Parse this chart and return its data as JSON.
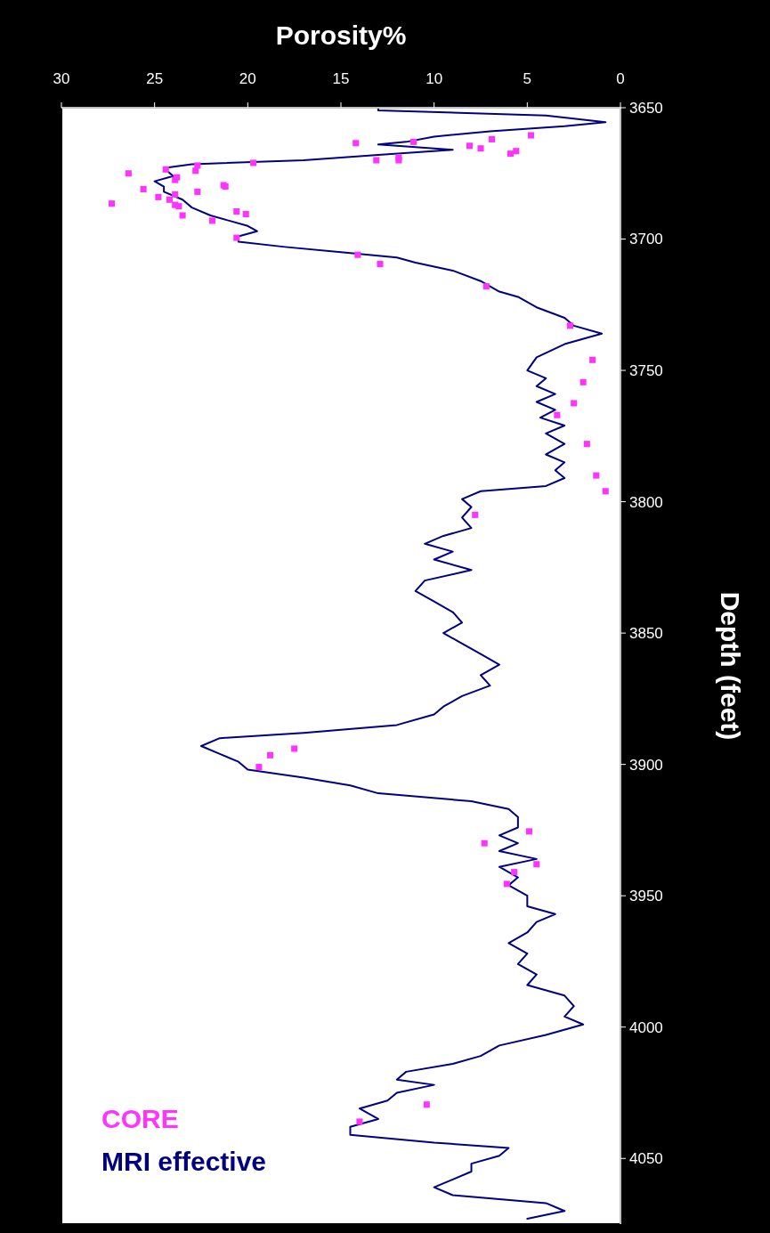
{
  "chart_data": {
    "type": "scatter",
    "xlabel": "Porosity%",
    "ylabel": "Depth (feet)",
    "xlim": [
      30,
      0
    ],
    "ylim": [
      4075,
      3650
    ],
    "xticks": [
      30,
      25,
      20,
      15,
      10,
      5,
      0
    ],
    "yticks": [
      3650,
      3700,
      3750,
      3800,
      3850,
      3900,
      3950,
      4000,
      4050
    ],
    "grid": false,
    "legend": "bottom left",
    "series": [
      {
        "name": "CORE",
        "marker": "square",
        "color": "#ff33ff",
        "x": [
          4.8,
          6.9,
          11.1,
          14.2,
          8.1,
          7.5,
          5.6,
          5.9,
          11.9,
          11.9,
          13.1,
          19.7,
          22.7,
          22.8,
          24.4,
          26.4,
          23.8,
          23.9,
          21.3,
          21.2,
          25.6,
          22.7,
          23.9,
          24.8,
          24.2,
          27.3,
          23.9,
          23.7,
          23.5,
          20.6,
          20.1,
          21.9,
          20.6,
          14.1,
          12.9,
          7.2,
          2.7,
          1.5,
          2.0,
          2.5,
          3.4,
          1.8,
          1.3,
          0.8,
          7.8,
          17.5,
          18.8,
          19.4,
          4.9,
          7.3,
          4.5,
          5.7,
          6.1,
          10.4,
          14.0
        ],
        "values": [
          3660.5,
          3662,
          3663,
          3663.5,
          3664.5,
          3665.5,
          3666.5,
          3667.5,
          3669,
          3670,
          3670,
          3671,
          3672,
          3674,
          3673.5,
          3675,
          3676.5,
          3677.5,
          3679.5,
          3680,
          3681,
          3682,
          3683,
          3684,
          3685,
          3686.5,
          3687,
          3687.5,
          3691,
          3689.5,
          3690.5,
          3693,
          3699.5,
          3706,
          3709.5,
          3718,
          3733,
          3746,
          3754.5,
          3762.5,
          3767,
          3778,
          3790,
          3796,
          3805,
          3894,
          3896.5,
          3901,
          3925.5,
          3930,
          3938,
          3941,
          3945.5,
          4029.5,
          4036
        ]
      },
      {
        "name": "MRI effective",
        "type": "line",
        "marker": "none",
        "line_style": "solid",
        "color": "#000080",
        "x": [
          13,
          13,
          4,
          0.8,
          3,
          7,
          10,
          11.5,
          13,
          9,
          13,
          17,
          23,
          24.5,
          24,
          25,
          24.5,
          24.5,
          23.5,
          23,
          22,
          21,
          20,
          19.5,
          20.5,
          20.5,
          18,
          15,
          12,
          11,
          9,
          7.5,
          6.5,
          5.5,
          4.5,
          3,
          2.5,
          1,
          3,
          4.5,
          5,
          4,
          4.5,
          3.5,
          4.5,
          3.5,
          4.3,
          3,
          4,
          3,
          4,
          3,
          3.5,
          3,
          4,
          7.5,
          8.5,
          8,
          8.5,
          8,
          9.5,
          10.5,
          9,
          10,
          8,
          10.5,
          11,
          10,
          9,
          8.5,
          9.5,
          8.5,
          7.5,
          6.5,
          7.5,
          7,
          8.5,
          9.5,
          10,
          12,
          17,
          21.5,
          22.5,
          21.5,
          20.5,
          20,
          17,
          14.5,
          13,
          8,
          6,
          5.5,
          5.5,
          6.5,
          5.5,
          6.5,
          4.5,
          6.5,
          5.5,
          6,
          5,
          5,
          3.5,
          4.5,
          5,
          6,
          5,
          5.5,
          4.5,
          5,
          3,
          2.5,
          3,
          2,
          4,
          6.5,
          7.5,
          9,
          11.5,
          12,
          10,
          12,
          12.5,
          14,
          13,
          14.5,
          14.5,
          10,
          6,
          6.5,
          8,
          8,
          9,
          10,
          9,
          4,
          3,
          5
        ],
        "values": [
          3650,
          3651,
          3653,
          3655.5,
          3657,
          3659,
          3661,
          3663,
          3664,
          3666,
          3668,
          3670,
          3671.5,
          3673,
          3676,
          3678,
          3680,
          3682,
          3685,
          3688,
          3691,
          3693,
          3695,
          3697,
          3699,
          3701,
          3703,
          3705,
          3707,
          3709,
          3712,
          3716,
          3720,
          3722,
          3726,
          3730,
          3733,
          3736,
          3740,
          3745,
          3750,
          3753,
          3756,
          3759,
          3762,
          3765,
          3768,
          3771,
          3774,
          3778,
          3782,
          3785,
          3788,
          3791,
          3794,
          3796,
          3799,
          3802,
          3806,
          3810,
          3813,
          3816,
          3819,
          3822,
          3826,
          3830,
          3834,
          3838,
          3842,
          3846,
          3850,
          3854,
          3858,
          3862,
          3866,
          3870,
          3874,
          3878,
          3881,
          3885,
          3888,
          3890,
          3893,
          3896,
          3899,
          3902,
          3905,
          3908,
          3911,
          3914,
          3917,
          3920,
          3924,
          3927,
          3930,
          3933,
          3936,
          3939,
          3943,
          3946,
          3950,
          3954,
          3957,
          3960,
          3964,
          3968,
          3972,
          3976,
          3980,
          3984,
          3988,
          3992,
          3996,
          3999,
          4003,
          4007,
          4011,
          4014,
          4017,
          4020,
          4022,
          4025,
          4028,
          4031,
          4035,
          4038,
          4041,
          4044,
          4046,
          4049,
          4052,
          4055,
          4058,
          4061,
          4064,
          4067,
          4070,
          4073
        ]
      }
    ]
  }
}
